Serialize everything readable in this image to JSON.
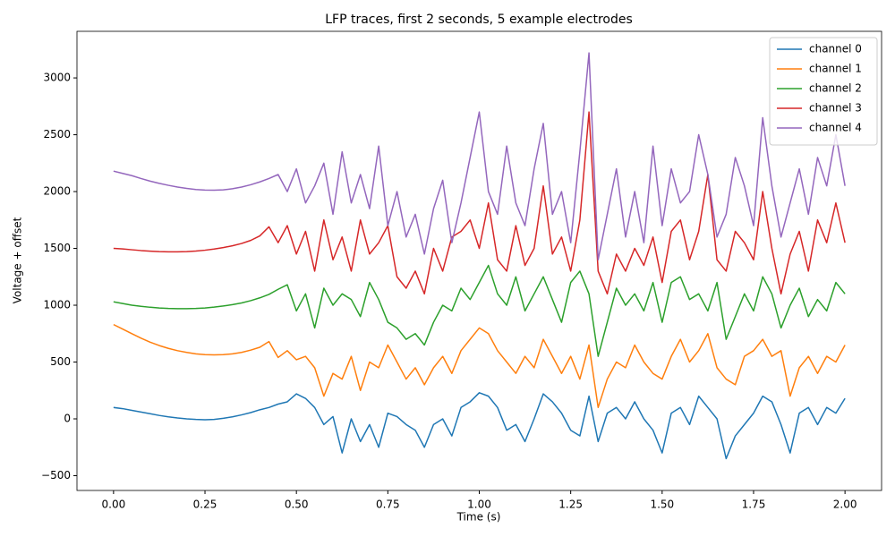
{
  "chart_data": {
    "type": "line",
    "title": "LFP traces, first 2 seconds, 5 example electrodes",
    "xlabel": "Time (s)",
    "ylabel": "Voltage + offset",
    "x": [
      0,
      0.025,
      0.05,
      0.075,
      0.1,
      0.125,
      0.15,
      0.175,
      0.2,
      0.225,
      0.25,
      0.275,
      0.3,
      0.325,
      0.35,
      0.375,
      0.4,
      0.425,
      0.45,
      0.475,
      0.5,
      0.525,
      0.55,
      0.575,
      0.6,
      0.625,
      0.65,
      0.675,
      0.7,
      0.725,
      0.75,
      0.775,
      0.8,
      0.825,
      0.85,
      0.875,
      0.9,
      0.925,
      0.95,
      0.975,
      1,
      1.025,
      1.05,
      1.075,
      1.1,
      1.125,
      1.15,
      1.175,
      1.2,
      1.225,
      1.25,
      1.275,
      1.3,
      1.325,
      1.35,
      1.375,
      1.4,
      1.425,
      1.45,
      1.475,
      1.5,
      1.525,
      1.55,
      1.575,
      1.6,
      1.625,
      1.65,
      1.675,
      1.7,
      1.725,
      1.75,
      1.775,
      1.8,
      1.825,
      1.85,
      1.875,
      1.9,
      1.925,
      1.95,
      1.975,
      2
    ],
    "series": [
      {
        "name": "channel 0",
        "color": "#1f77b4",
        "values": [
          100,
          90,
          75,
          60,
          45,
          30,
          18,
          8,
          0,
          -5,
          -8,
          -5,
          5,
          18,
          35,
          55,
          80,
          100,
          130,
          150,
          220,
          180,
          100,
          -50,
          20,
          -300,
          0,
          -200,
          -50,
          -250,
          50,
          20,
          -50,
          -100,
          -250,
          -50,
          0,
          -150,
          100,
          150,
          230,
          200,
          100,
          -100,
          -50,
          -200,
          0,
          220,
          150,
          50,
          -100,
          -150,
          200,
          -200,
          50,
          100,
          0,
          150,
          0,
          -100,
          -300,
          50,
          100,
          -50,
          200,
          100,
          0,
          -350,
          -150,
          -50,
          50,
          200,
          150,
          -50,
          -300,
          50,
          100,
          -50,
          100,
          50,
          180
        ]
      },
      {
        "name": "channel 1",
        "color": "#ff7f0e",
        "values": [
          830,
          790,
          750,
          710,
          675,
          645,
          620,
          600,
          585,
          572,
          565,
          563,
          565,
          572,
          585,
          605,
          630,
          680,
          540,
          600,
          520,
          550,
          450,
          200,
          400,
          350,
          550,
          250,
          500,
          450,
          650,
          500,
          350,
          450,
          300,
          450,
          550,
          400,
          600,
          700,
          800,
          750,
          600,
          500,
          400,
          550,
          450,
          700,
          550,
          400,
          550,
          350,
          650,
          100,
          350,
          500,
          450,
          650,
          500,
          400,
          350,
          550,
          700,
          500,
          600,
          750,
          450,
          350,
          300,
          550,
          600,
          700,
          550,
          600,
          200,
          450,
          550,
          400,
          550,
          500,
          650
        ]
      },
      {
        "name": "channel 2",
        "color": "#2ca02c",
        "values": [
          1030,
          1015,
          1000,
          990,
          982,
          976,
          972,
          970,
          970,
          972,
          976,
          983,
          993,
          1005,
          1020,
          1040,
          1065,
          1095,
          1140,
          1180,
          950,
          1100,
          800,
          1150,
          1000,
          1100,
          1050,
          900,
          1200,
          1050,
          850,
          800,
          700,
          750,
          650,
          850,
          1000,
          950,
          1150,
          1050,
          1200,
          1350,
          1100,
          1000,
          1250,
          950,
          1100,
          1250,
          1050,
          850,
          1200,
          1300,
          1100,
          550,
          850,
          1150,
          1000,
          1100,
          950,
          1200,
          850,
          1200,
          1250,
          1050,
          1100,
          950,
          1200,
          700,
          900,
          1100,
          950,
          1250,
          1100,
          800,
          1000,
          1150,
          900,
          1050,
          950,
          1200,
          1100
        ]
      },
      {
        "name": "channel 3",
        "color": "#d62728",
        "values": [
          1500,
          1495,
          1488,
          1481,
          1476,
          1472,
          1470,
          1470,
          1472,
          1477,
          1484,
          1494,
          1507,
          1523,
          1543,
          1570,
          1610,
          1690,
          1550,
          1700,
          1450,
          1650,
          1300,
          1750,
          1400,
          1600,
          1300,
          1750,
          1450,
          1550,
          1700,
          1250,
          1150,
          1300,
          1100,
          1500,
          1300,
          1600,
          1650,
          1750,
          1500,
          1900,
          1400,
          1300,
          1700,
          1350,
          1500,
          2050,
          1450,
          1600,
          1300,
          1750,
          2700,
          1300,
          1100,
          1450,
          1300,
          1500,
          1350,
          1600,
          1200,
          1650,
          1750,
          1400,
          1650,
          2150,
          1400,
          1300,
          1650,
          1550,
          1400,
          2000,
          1500,
          1100,
          1450,
          1650,
          1300,
          1750,
          1550,
          1900,
          1550
        ]
      },
      {
        "name": "channel 4",
        "color": "#9467bd",
        "values": [
          2180,
          2160,
          2140,
          2115,
          2092,
          2072,
          2055,
          2040,
          2028,
          2018,
          2013,
          2012,
          2015,
          2025,
          2040,
          2060,
          2085,
          2115,
          2150,
          2000,
          2200,
          1900,
          2050,
          2250,
          1800,
          2350,
          1900,
          2150,
          1850,
          2400,
          1700,
          2000,
          1600,
          1800,
          1450,
          1850,
          2100,
          1550,
          1900,
          2300,
          2700,
          2000,
          1800,
          2400,
          1900,
          1700,
          2200,
          2600,
          1800,
          2000,
          1550,
          2350,
          3220,
          1400,
          1800,
          2200,
          1600,
          2000,
          1550,
          2400,
          1700,
          2200,
          1900,
          2000,
          2500,
          2150,
          1600,
          1800,
          2300,
          2050,
          1700,
          2650,
          2050,
          1600,
          1900,
          2200,
          1800,
          2300,
          2050,
          2500,
          2050
        ]
      }
    ],
    "xlim": [
      -0.1,
      2.1
    ],
    "ylim": [
      -630,
      3410
    ],
    "xticks": [
      {
        "value": 0,
        "label": "0.00"
      },
      {
        "value": 0.25,
        "label": "0.25"
      },
      {
        "value": 0.5,
        "label": "0.50"
      },
      {
        "value": 0.75,
        "label": "0.75"
      },
      {
        "value": 1,
        "label": "1.00"
      },
      {
        "value": 1.25,
        "label": "1.25"
      },
      {
        "value": 1.5,
        "label": "1.50"
      },
      {
        "value": 1.75,
        "label": "1.75"
      },
      {
        "value": 2,
        "label": "2.00"
      }
    ],
    "yticks": [
      {
        "value": -500,
        "label": "−500"
      },
      0,
      500,
      1000,
      1500,
      2000,
      2500,
      3000
    ],
    "legend": "upper right",
    "grid": false
  }
}
